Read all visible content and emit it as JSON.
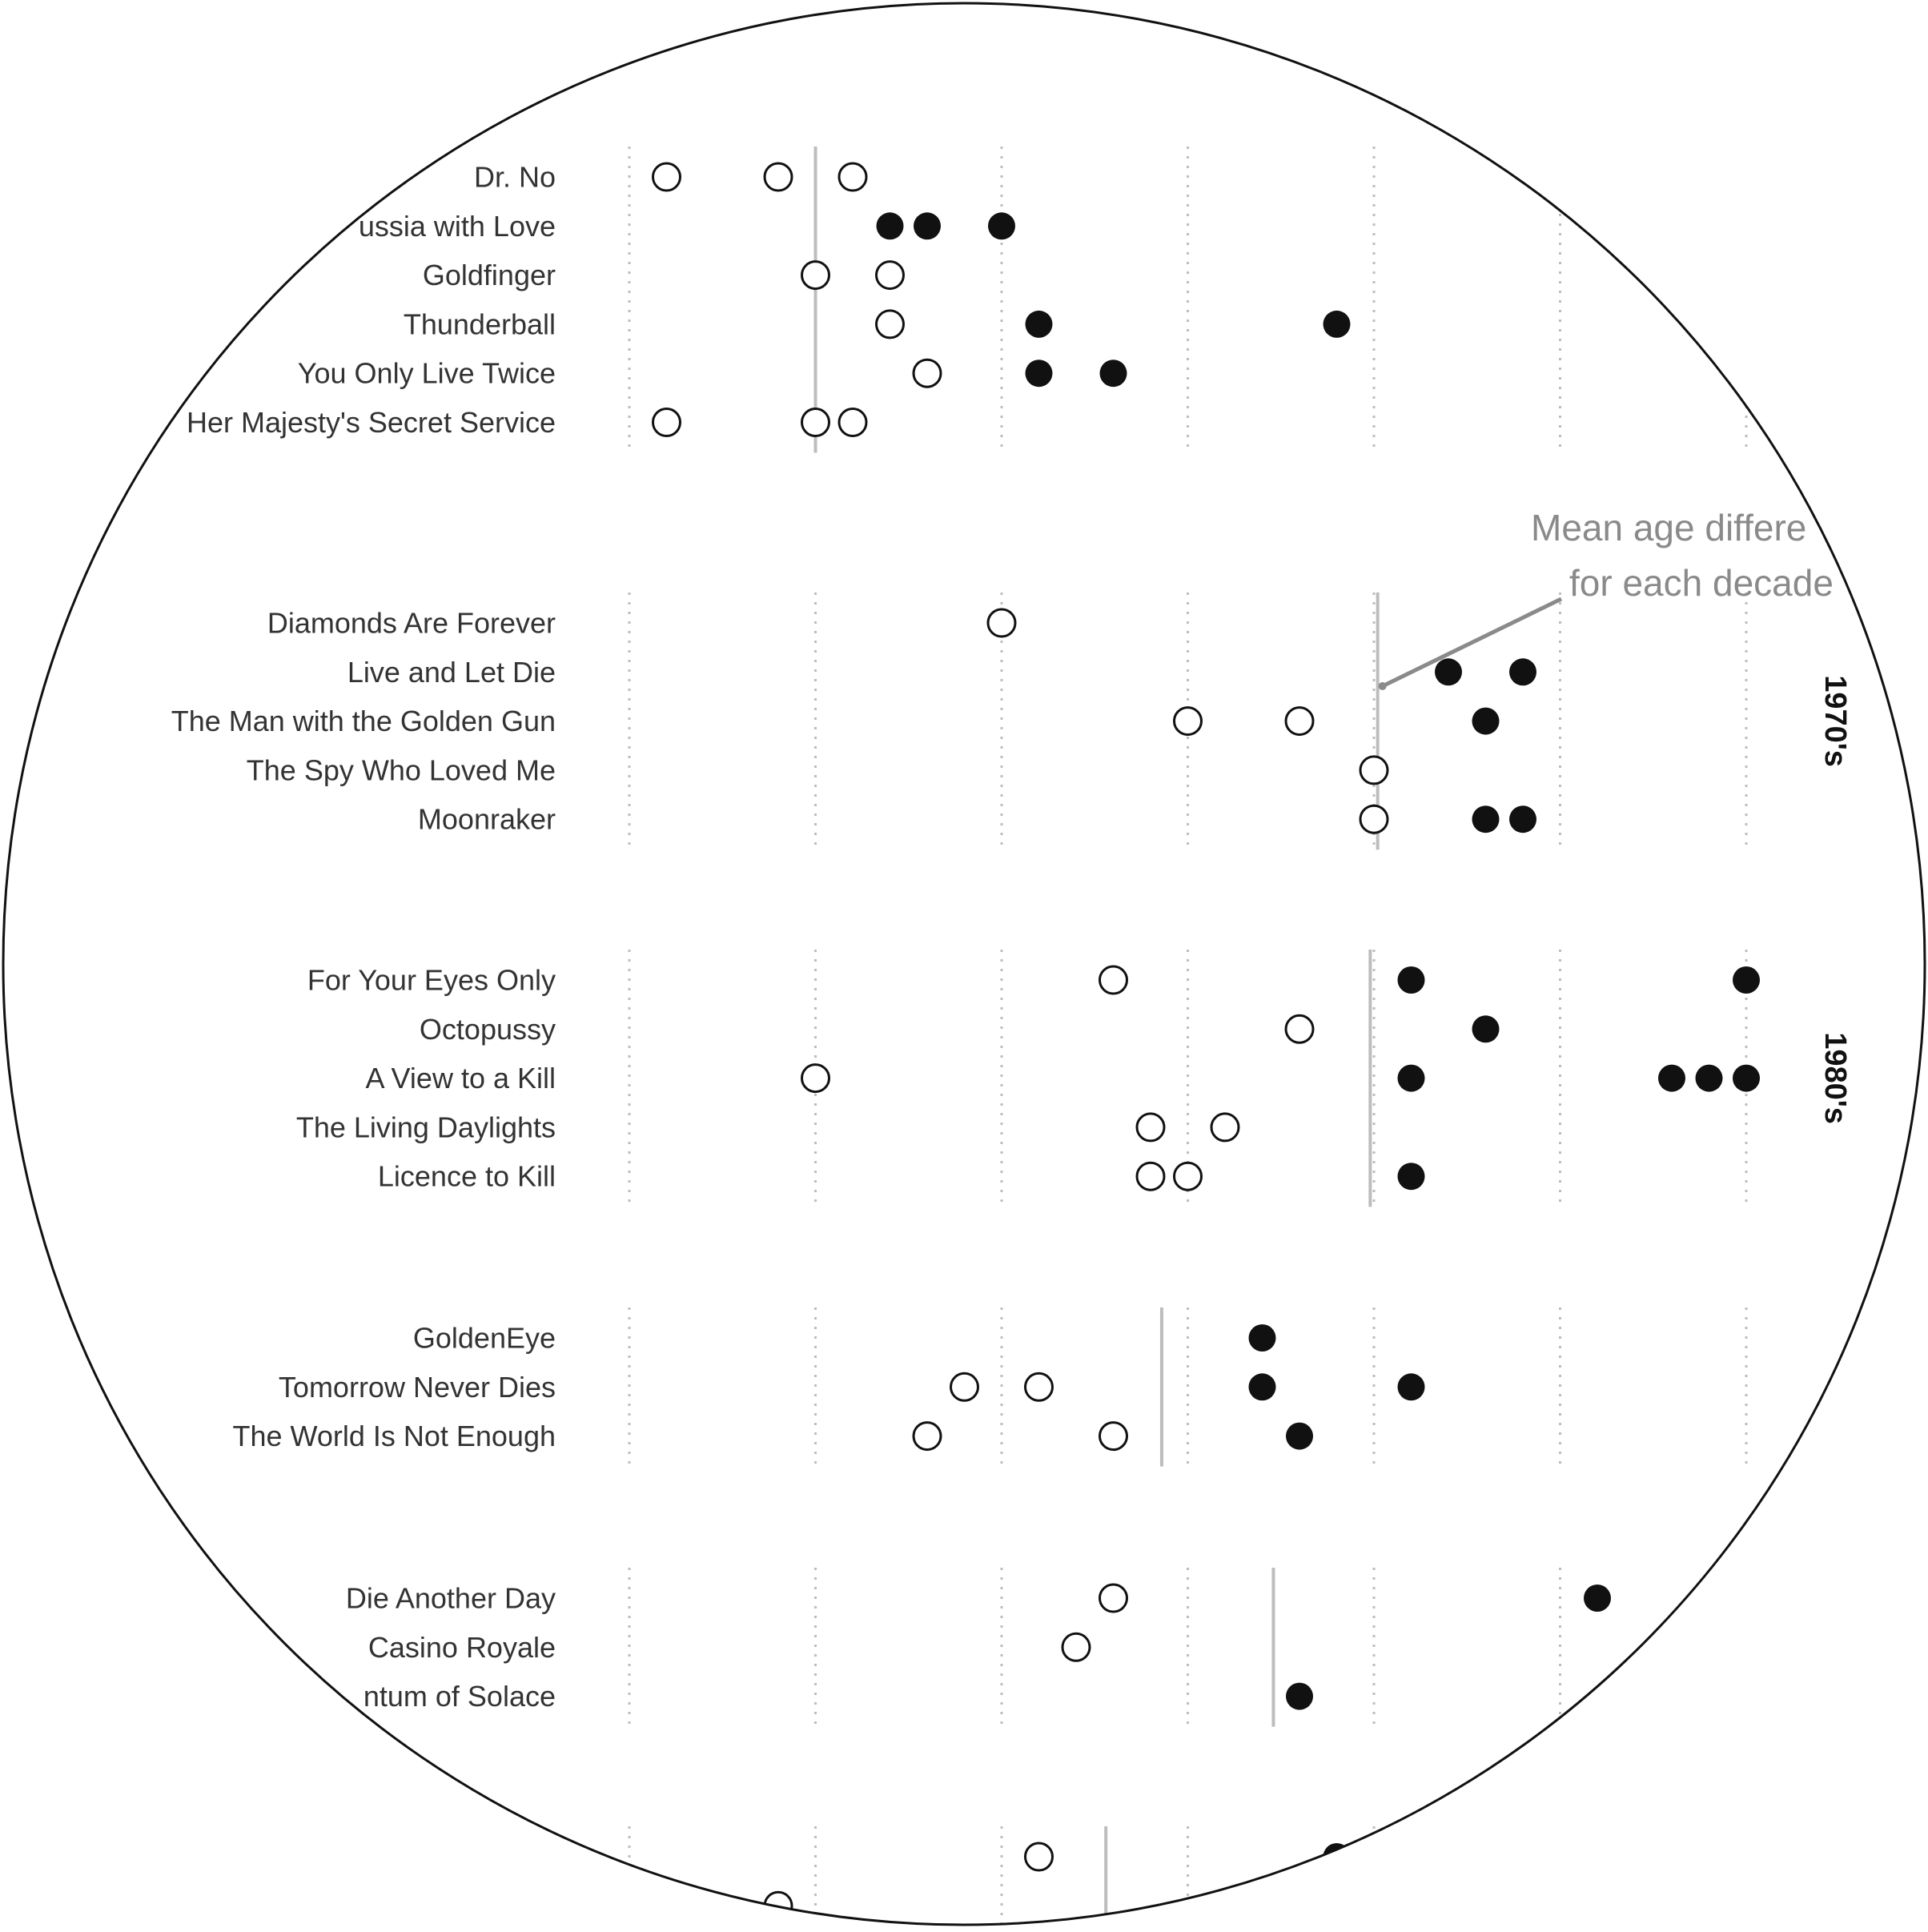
{
  "colors": {
    "background": "#ffffff",
    "gridline": "#bdbdbd",
    "mean_line": "#bdbdbd",
    "filled_marker": "#111111",
    "hollow_marker_stroke": "#111111",
    "label_text": "#333333",
    "annotation_text": "#8a8a8a",
    "lens_border": "#111111"
  },
  "chart_data": {
    "type": "scatter",
    "title": "",
    "xlabel": "",
    "ylabel": "",
    "grid": "vertical dotted",
    "marker_encoding": "hollow circle and filled black circle",
    "annotation": {
      "lines": [
        "Mean age differe",
        "for each decade"
      ],
      "points_to": "1970's mean line"
    },
    "groups": [
      {
        "decade": "",
        "mean": 5.0,
        "films": [
          {
            "label": "Dr. No",
            "hollow": [
              1.0,
              4.0,
              6.0
            ],
            "filled": []
          },
          {
            "label": "ussia with Love",
            "hollow": [],
            "filled": [
              7.0,
              8.0,
              10.0
            ]
          },
          {
            "label": "Goldfinger",
            "hollow": [
              5.0,
              7.0
            ],
            "filled": []
          },
          {
            "label": "Thunderball",
            "hollow": [
              7.0
            ],
            "filled": [
              11.0,
              19.0
            ]
          },
          {
            "label": "You Only Live Twice",
            "hollow": [
              8.0
            ],
            "filled": [
              11.0,
              13.0
            ]
          },
          {
            "label": "Her Majesty's Secret Service",
            "hollow": [
              1.0,
              5.0,
              6.0
            ],
            "filled": []
          }
        ]
      },
      {
        "decade": "1970's",
        "mean": 20.1,
        "films": [
          {
            "label": "Diamonds Are Forever",
            "hollow": [
              10.0
            ],
            "filled": []
          },
          {
            "label": "Live and Let Die",
            "hollow": [],
            "filled": [
              22.0,
              24.0
            ]
          },
          {
            "label": "The Man with the Golden Gun",
            "hollow": [
              15.0,
              18.0
            ],
            "filled": [
              23.0
            ]
          },
          {
            "label": "The Spy Who Loved Me",
            "hollow": [
              20.0
            ],
            "filled": []
          },
          {
            "label": "Moonraker",
            "hollow": [
              20.0
            ],
            "filled": [
              23.0,
              24.0
            ]
          }
        ]
      },
      {
        "decade": "1980's",
        "mean": 19.9,
        "films": [
          {
            "label": "For Your Eyes Only",
            "hollow": [
              13.0
            ],
            "filled": [
              21.0,
              30.0
            ]
          },
          {
            "label": "Octopussy",
            "hollow": [
              18.0
            ],
            "filled": [
              23.0
            ]
          },
          {
            "label": "A View to a Kill",
            "hollow": [
              5.0
            ],
            "filled": [
              21.0,
              28.0,
              29.0,
              30.0
            ]
          },
          {
            "label": "The Living Daylights",
            "hollow": [
              14.0,
              16.0
            ],
            "filled": []
          },
          {
            "label": "Licence to Kill",
            "hollow": [
              14.0,
              15.0
            ],
            "filled": [
              21.0
            ]
          }
        ]
      },
      {
        "decade": "",
        "mean": 14.3,
        "films": [
          {
            "label": "GoldenEye",
            "hollow": [],
            "filled": [
              17.0
            ]
          },
          {
            "label": "Tomorrow Never Dies",
            "hollow": [
              9.0,
              11.0
            ],
            "filled": [
              17.0,
              21.0
            ]
          },
          {
            "label": "The World Is Not Enough",
            "hollow": [
              8.0,
              13.0
            ],
            "filled": [
              18.0
            ]
          }
        ]
      },
      {
        "decade": "",
        "mean": 17.3,
        "films": [
          {
            "label": "Die Another Day",
            "hollow": [
              13.0
            ],
            "filled": [
              26.0
            ]
          },
          {
            "label": "Casino Royale",
            "hollow": [
              12.0
            ],
            "filled": []
          },
          {
            "label": "ntum of Solace",
            "hollow": [],
            "filled": [
              18.0
            ]
          }
        ]
      },
      {
        "decade": "",
        "mean": 12.8,
        "films": [
          {
            "label": "",
            "hollow": [
              11.0
            ],
            "filled": [
              19.0
            ]
          },
          {
            "label": "",
            "hollow": [
              4.0
            ],
            "filled": []
          }
        ]
      }
    ]
  }
}
